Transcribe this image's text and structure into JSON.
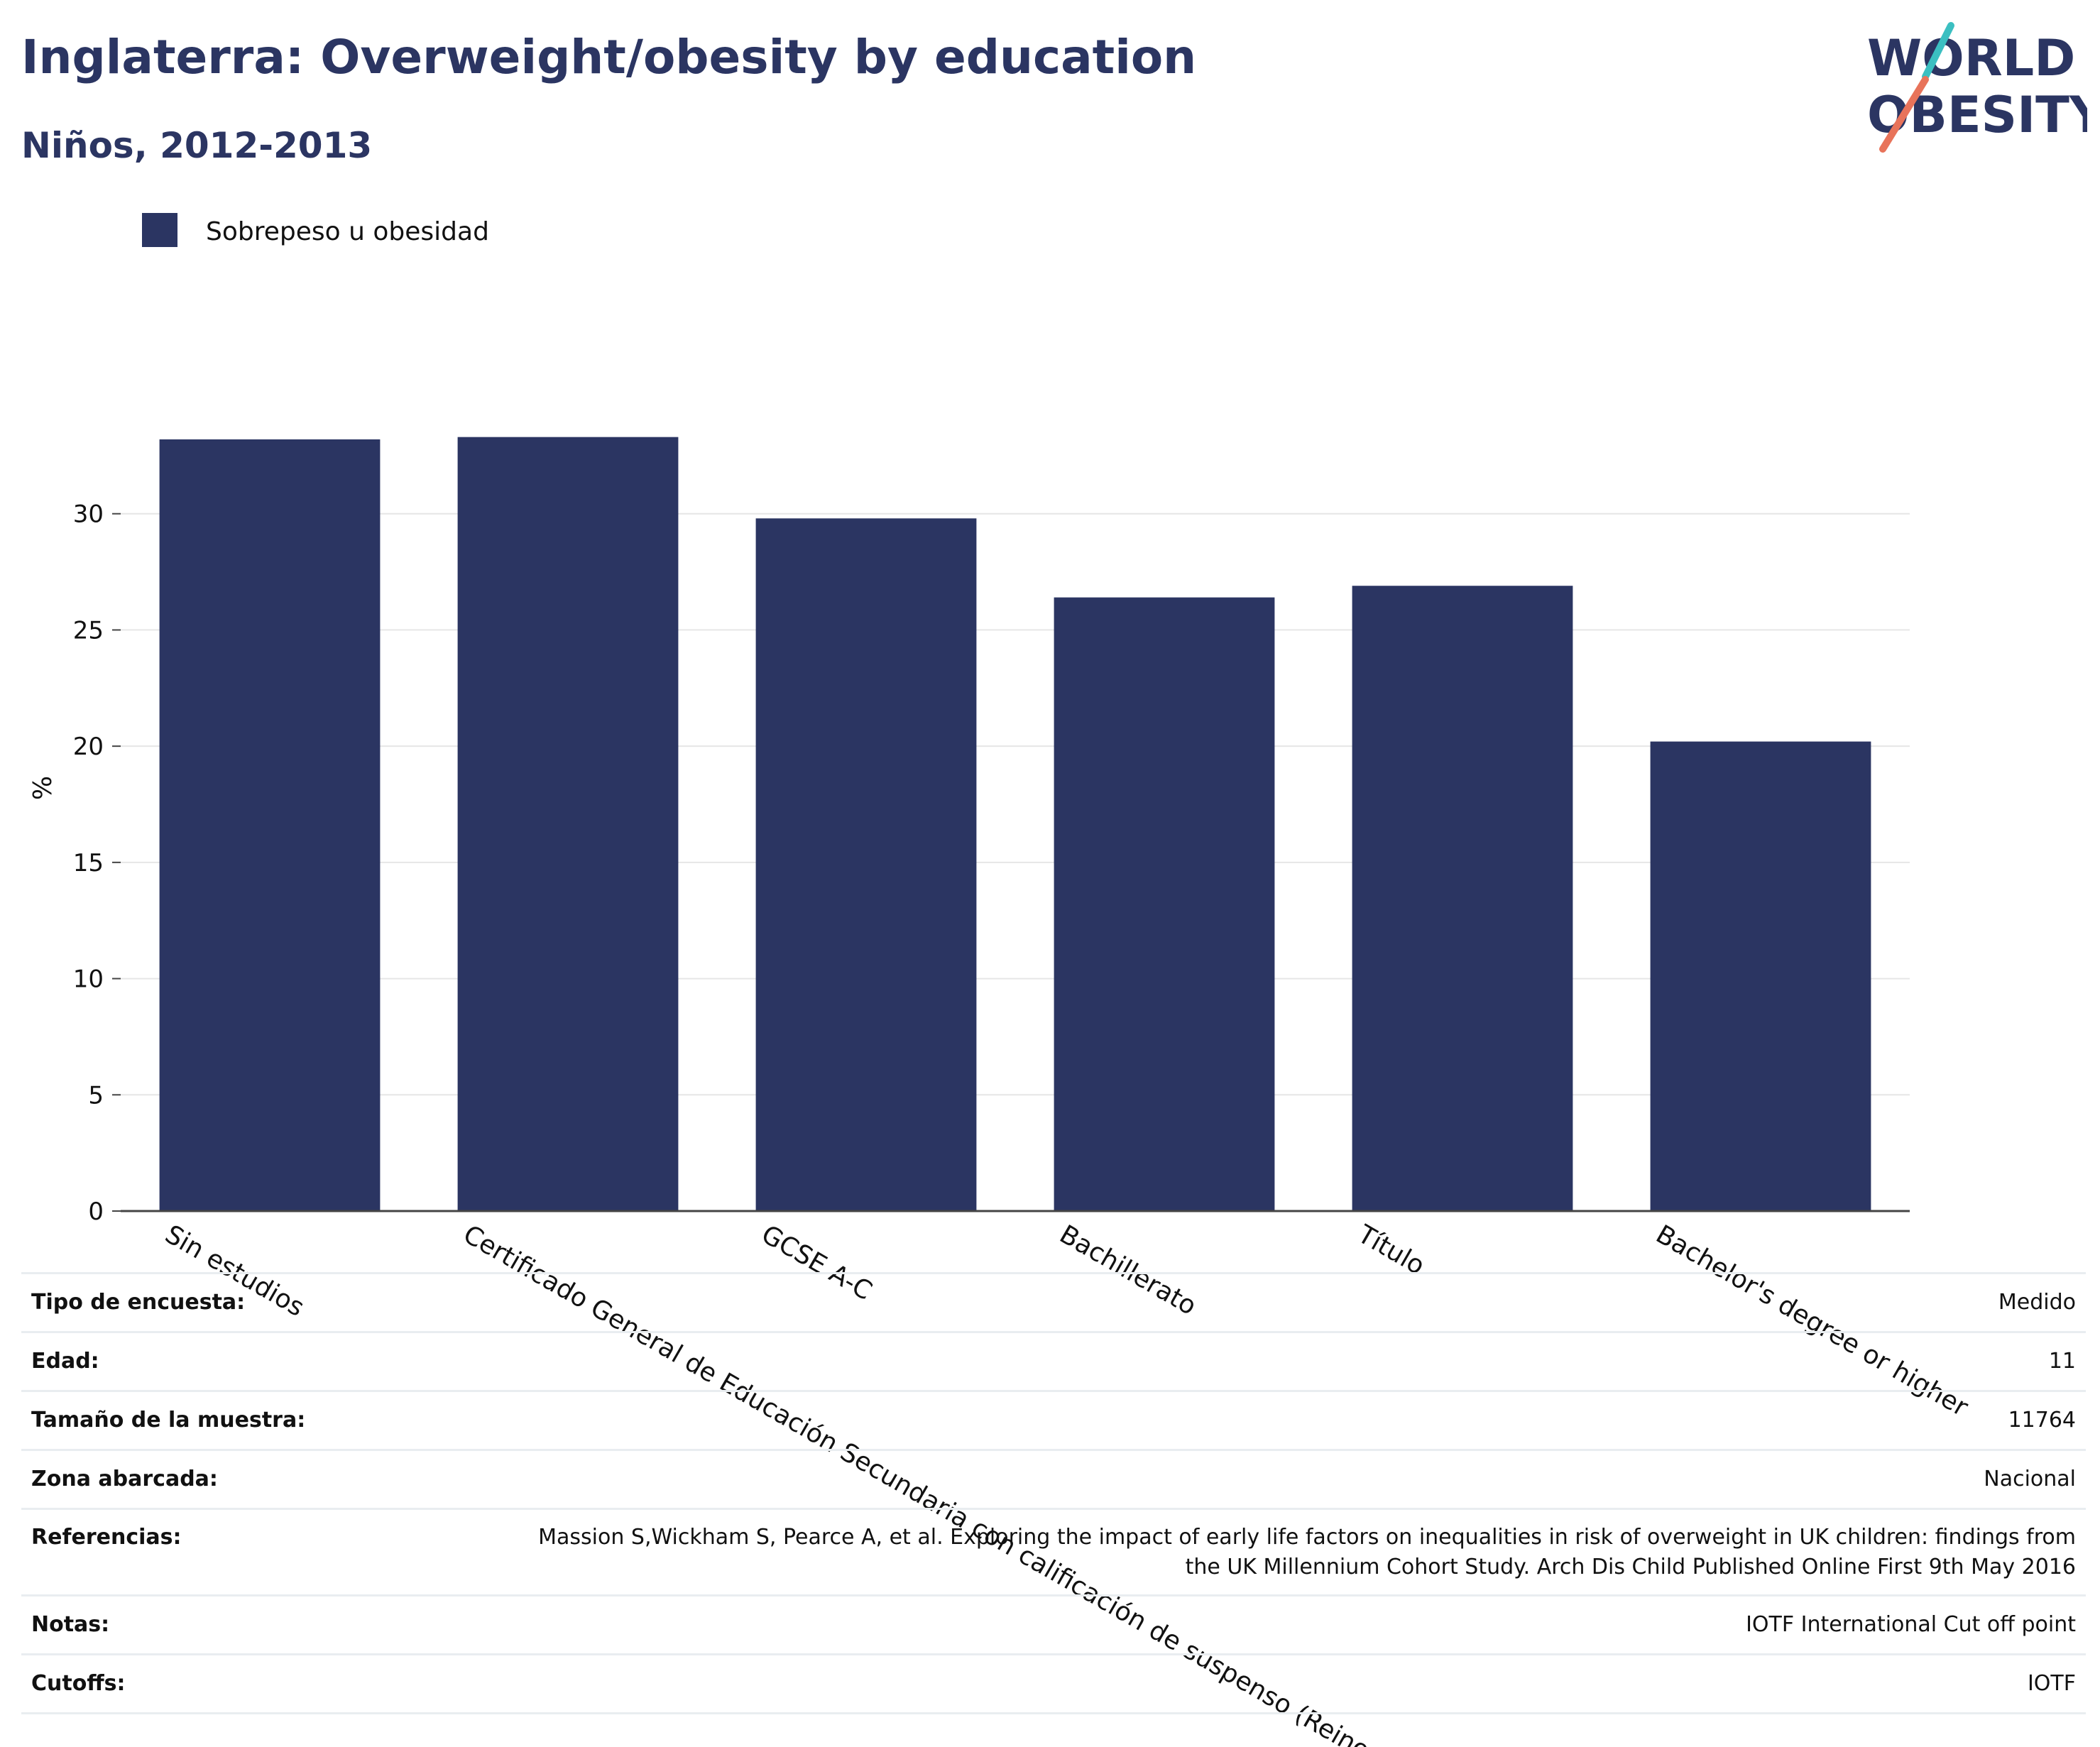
{
  "title": "Inglaterra: Overweight/obesity by education",
  "subtitle": "Niños, 2012-2013",
  "logo": {
    "line1": "WORLD",
    "line2": "OBESITY"
  },
  "colors": {
    "bar": "#2b3562",
    "title": "#2b3562",
    "grid": "#e6e6e6",
    "logo_teal": "#3bbfc1",
    "logo_coral": "#e8735a"
  },
  "chart_data": {
    "type": "bar",
    "categories": [
      "Sin estudios",
      "Certificado General de Educación Secundaria con calificación de suspenso (Reino Unido)",
      "GCSE A-C",
      "Bachillerato",
      "Título",
      "Bachelor's degree or higher"
    ],
    "series": [
      {
        "name": "Sobrepeso u obesidad",
        "values": [
          33.2,
          33.3,
          29.8,
          26.4,
          26.9,
          20.2
        ]
      }
    ],
    "ylabel": "%",
    "xlabel": "",
    "ylim": [
      0,
      35
    ],
    "yticks": [
      0,
      5,
      10,
      15,
      20,
      25,
      30
    ],
    "grid": true,
    "legend_position": "top-left"
  },
  "info": [
    {
      "label": "Tipo de encuesta:",
      "value": "Medido"
    },
    {
      "label": "Edad:",
      "value": "11"
    },
    {
      "label": "Tamaño de la muestra:",
      "value": "11764"
    },
    {
      "label": "Zona abarcada:",
      "value": "Nacional"
    },
    {
      "label": "Referencias:",
      "value": "Massion S,Wickham S, Pearce A, et al. Exploring the impact of early life factors on inequalities in risk of overweight in UK children: findings from the UK Millennium Cohort Study. Arch Dis Child Published Online First 9th May 2016"
    },
    {
      "label": "Notas:",
      "value": "IOTF International Cut off point"
    },
    {
      "label": "Cutoffs:",
      "value": "IOTF"
    }
  ]
}
